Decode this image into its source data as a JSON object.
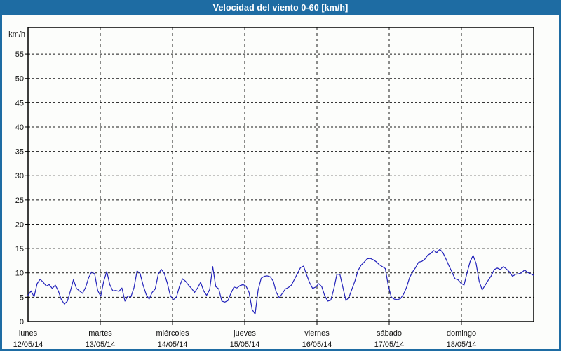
{
  "title_bar": {
    "title": "Velocidad del viento 0-60 [km/h]"
  },
  "colors": {
    "titlebar_bg": "#1e6ca3",
    "window_border": "#1e6ca3",
    "window_bg": "#fcfdfb",
    "grid": "#1a1a1a",
    "axis_frame": "#000000",
    "line": "#2222bb",
    "text": "#111111"
  },
  "chart_data": {
    "type": "line",
    "title": "Velocidad del viento 0-60 [km/h]",
    "unit_label": "km/h",
    "ylabel": "km/h",
    "ylim": [
      0,
      60.5
    ],
    "yticks": [
      0,
      5,
      10,
      15,
      20,
      25,
      30,
      35,
      40,
      45,
      50,
      55
    ],
    "grid": "dashed",
    "legend_position": "none",
    "points_per_day": 24,
    "days": [
      {
        "name": "lunes",
        "date": "12/05/14"
      },
      {
        "name": "martes",
        "date": "13/05/14"
      },
      {
        "name": "miércoles",
        "date": "14/05/14"
      },
      {
        "name": "jueves",
        "date": "15/05/14"
      },
      {
        "name": "viernes",
        "date": "16/05/14"
      },
      {
        "name": "sábado",
        "date": "17/05/14"
      },
      {
        "name": "domingo",
        "date": "18/05/14"
      }
    ],
    "series": [
      {
        "name": "Velocidad del viento [km/h]",
        "values": [
          5.4,
          6.3,
          5.1,
          7.8,
          8.7,
          8.1,
          7.3,
          7.6,
          6.8,
          7.5,
          6.3,
          4.5,
          3.6,
          4.2,
          6.3,
          8.6,
          6.8,
          6.3,
          5.8,
          7.0,
          9.0,
          10.2,
          9.8,
          6.4,
          5.2,
          8.3,
          10.3,
          7.6,
          6.3,
          6.4,
          6.2,
          6.9,
          4.2,
          5.3,
          5.1,
          7.0,
          10.4,
          9.9,
          7.5,
          5.6,
          4.6,
          6.0,
          6.7,
          9.7,
          10.75,
          9.9,
          7.9,
          5.3,
          4.5,
          5.0,
          7.2,
          8.8,
          8.3,
          7.5,
          6.8,
          6.0,
          6.9,
          8.1,
          6.3,
          5.4,
          6.6,
          11.3,
          7.2,
          6.7,
          4.2,
          4.0,
          4.3,
          5.8,
          7.1,
          6.9,
          7.4,
          7.6,
          7.3,
          6.0,
          2.5,
          1.5,
          6.5,
          8.9,
          9.3,
          9.4,
          9.2,
          8.3,
          6.0,
          4.9,
          5.8,
          6.7,
          7.0,
          7.5,
          8.7,
          9.9,
          11.1,
          11.4,
          9.6,
          8.0,
          6.8,
          7.1,
          7.8,
          7.2,
          5.3,
          4.2,
          4.4,
          6.7,
          9.7,
          9.7,
          7.0,
          4.3,
          5.0,
          6.7,
          8.4,
          10.5,
          11.6,
          12.2,
          12.9,
          13.0,
          12.7,
          12.3,
          11.7,
          11.3,
          10.9,
          7.3,
          5.0,
          4.6,
          4.5,
          4.7,
          5.6,
          7.0,
          9.0,
          10.2,
          11.1,
          12.2,
          12.35,
          12.8,
          13.65,
          14.0,
          14.6,
          14.2,
          14.85,
          14.2,
          12.9,
          11.5,
          10.2,
          8.8,
          8.6,
          7.9,
          7.5,
          10.0,
          12.3,
          13.6,
          11.9,
          8.3,
          6.5,
          7.5,
          8.5,
          9.4,
          10.7,
          11.0,
          10.7,
          11.3,
          10.8,
          10.2,
          9.3,
          9.7,
          9.8,
          10.0,
          10.6,
          10.1,
          9.8,
          9.5
        ]
      }
    ]
  }
}
